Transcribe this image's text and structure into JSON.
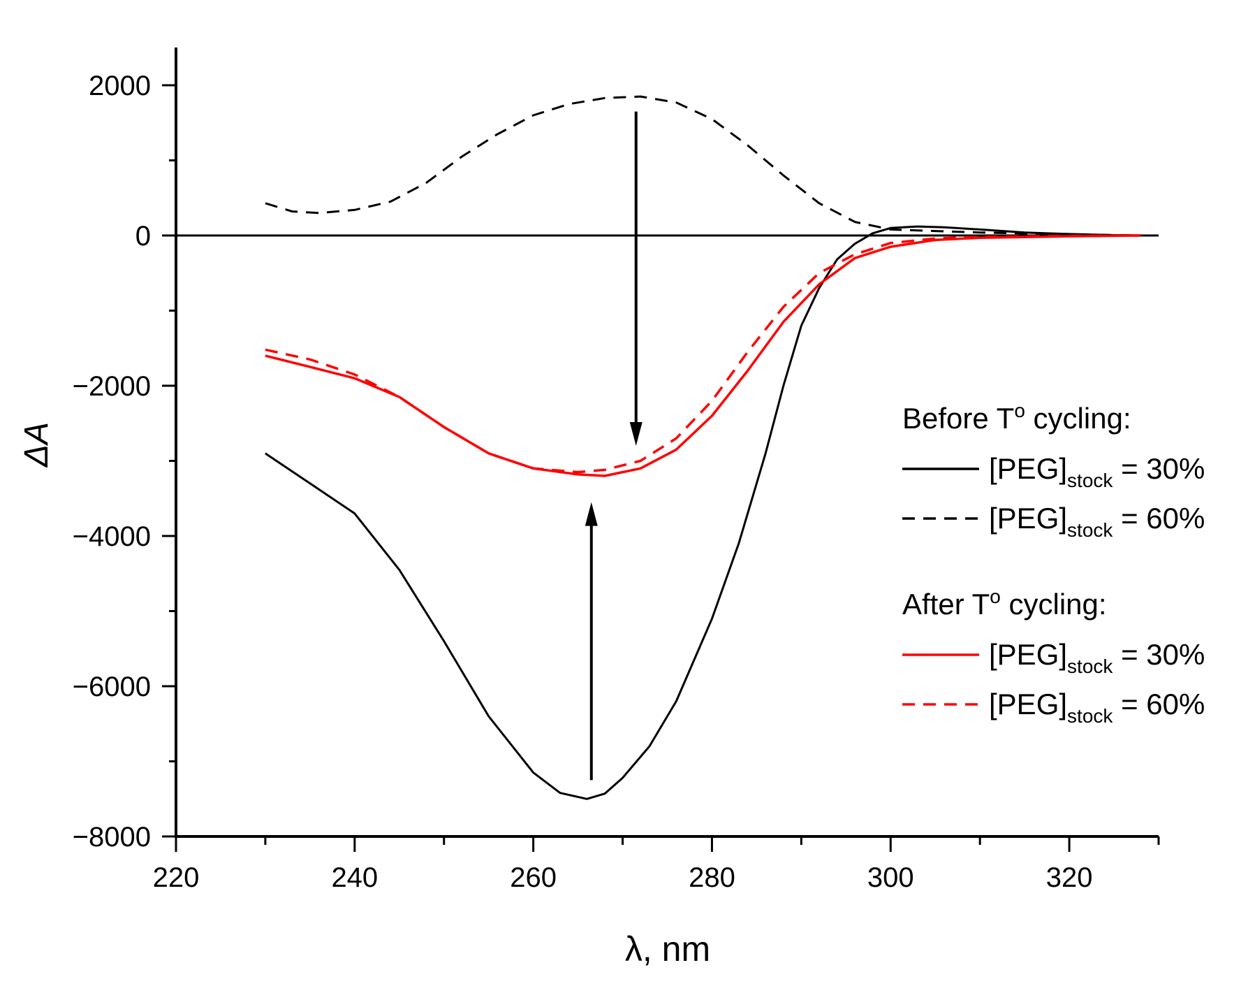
{
  "chart_data": {
    "type": "line",
    "title": "",
    "xlabel": "λ, nm",
    "ylabel": "ΔA",
    "xlim": [
      220,
      330
    ],
    "ylim": [
      -8000,
      2500
    ],
    "xticks": [
      220,
      240,
      260,
      280,
      300,
      320
    ],
    "xtick_labels": [
      "220",
      "240",
      "260",
      "280",
      "300",
      "320"
    ],
    "yticks": [
      -8000,
      -6000,
      -4000,
      -2000,
      0,
      2000
    ],
    "ytick_labels": [
      "−8000",
      "−6000",
      "−4000",
      "−2000",
      "0",
      "2000"
    ],
    "grid": false,
    "zero_line": true,
    "legend": {
      "placement": "right",
      "groups": [
        {
          "title": "Before T",
          "title_sup": "o",
          "title_tail": " cycling:"
        },
        {
          "title": "After T",
          "title_sup": "o",
          "title_tail": " cycling:"
        }
      ],
      "entry_prefix": "[PEG]",
      "entry_sub": "stock"
    },
    "series": [
      {
        "name": "Before T° cycling: [PEG]stock = 30%",
        "label_tail": " = 30%",
        "group": 0,
        "color": "#000000",
        "dash": "solid",
        "x": [
          230,
          235,
          240,
          245,
          250,
          255,
          260,
          263,
          266,
          268,
          270,
          273,
          276,
          280,
          283,
          286,
          288,
          290,
          292,
          294,
          296,
          298,
          300,
          303,
          306,
          310,
          315,
          320,
          325,
          328
        ],
        "y": [
          -2900,
          -3300,
          -3700,
          -4450,
          -5400,
          -6400,
          -7150,
          -7420,
          -7500,
          -7430,
          -7220,
          -6800,
          -6200,
          -5100,
          -4100,
          -2900,
          -2000,
          -1200,
          -700,
          -320,
          -110,
          30,
          100,
          120,
          110,
          80,
          40,
          20,
          5,
          0
        ]
      },
      {
        "name": "Before T° cycling: [PEG]stock = 60%",
        "label_tail": " = 60%",
        "group": 0,
        "color": "#000000",
        "dash": "dashed",
        "x": [
          230,
          233,
          236,
          240,
          244,
          248,
          252,
          256,
          260,
          264,
          268,
          272,
          276,
          280,
          284,
          288,
          292,
          296,
          300,
          305,
          310,
          320,
          328
        ],
        "y": [
          430,
          320,
          300,
          340,
          450,
          700,
          1050,
          1350,
          1600,
          1750,
          1830,
          1850,
          1770,
          1550,
          1200,
          800,
          430,
          180,
          80,
          60,
          40,
          15,
          0
        ]
      },
      {
        "name": "After T° cycling: [PEG]stock = 30%",
        "label_tail": " = 30%",
        "group": 1,
        "color": "#ff0000",
        "dash": "solid",
        "x": [
          230,
          235,
          240,
          245,
          250,
          255,
          260,
          265,
          268,
          272,
          276,
          280,
          284,
          288,
          292,
          296,
          300,
          305,
          310,
          320,
          328
        ],
        "y": [
          -1600,
          -1750,
          -1900,
          -2150,
          -2550,
          -2900,
          -3100,
          -3180,
          -3200,
          -3100,
          -2850,
          -2400,
          -1800,
          -1150,
          -650,
          -300,
          -150,
          -60,
          -30,
          -10,
          0
        ]
      },
      {
        "name": "After T° cycling: [PEG]stock = 60%",
        "label_tail": " = 60%",
        "group": 1,
        "color": "#ff0000",
        "dash": "dashed",
        "x": [
          230,
          235,
          240,
          245,
          250,
          255,
          260,
          265,
          268,
          272,
          276,
          280,
          284,
          288,
          292,
          296,
          300,
          305,
          310,
          320,
          328
        ],
        "y": [
          -1520,
          -1650,
          -1850,
          -2150,
          -2550,
          -2900,
          -3100,
          -3150,
          -3120,
          -3000,
          -2700,
          -2200,
          -1550,
          -950,
          -500,
          -250,
          -100,
          -40,
          -20,
          -5,
          0
        ]
      }
    ],
    "annotations": [
      {
        "type": "arrow",
        "x": 271.5,
        "from": 1650,
        "to": -2800
      },
      {
        "type": "arrow",
        "x": 266.5,
        "from": -7250,
        "to": -3550
      }
    ]
  }
}
